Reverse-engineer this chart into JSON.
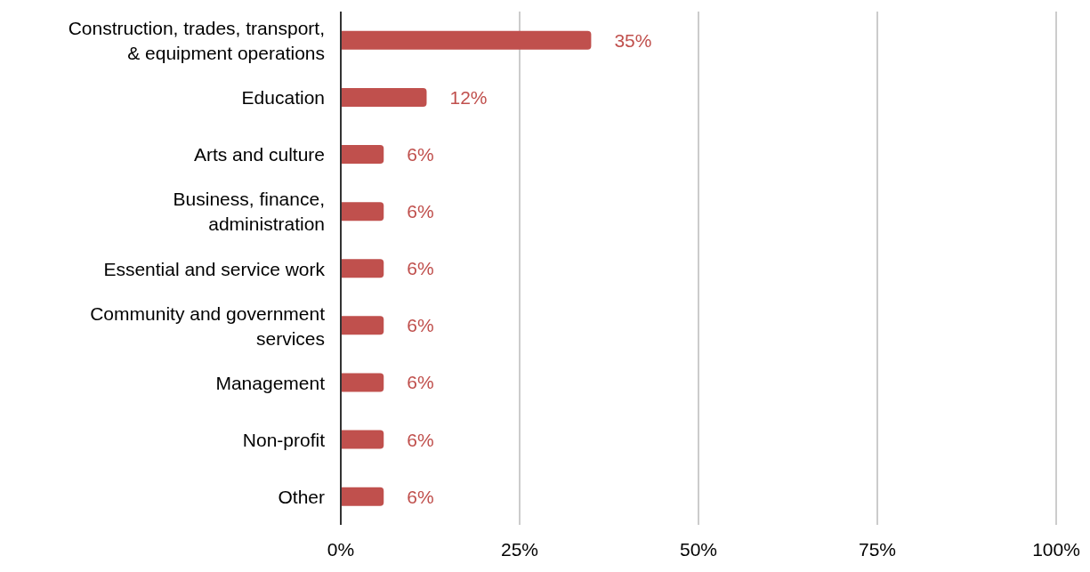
{
  "chart_data": {
    "type": "bar",
    "orientation": "horizontal",
    "categories": [
      "Construction, trades, transport, & equipment operations",
      "Education",
      "Arts and culture",
      "Business, finance, administration",
      "Essential and service work",
      "Community and government services",
      "Management",
      "Non-profit",
      "Other"
    ],
    "values": [
      35,
      12,
      6,
      6,
      6,
      6,
      6,
      6,
      6
    ],
    "value_labels": [
      "35%",
      "12%",
      "6%",
      "6%",
      "6%",
      "6%",
      "6%",
      "6%",
      "6%"
    ],
    "color": "#c0504d",
    "xlim": [
      0,
      100
    ],
    "xticks": [
      {
        "value": 0,
        "label": "0%"
      },
      {
        "value": 25,
        "label": "25%"
      },
      {
        "value": 50,
        "label": "50%"
      },
      {
        "value": 75,
        "label": "75%"
      },
      {
        "value": 100,
        "label": "100%"
      }
    ],
    "grid": "x"
  }
}
